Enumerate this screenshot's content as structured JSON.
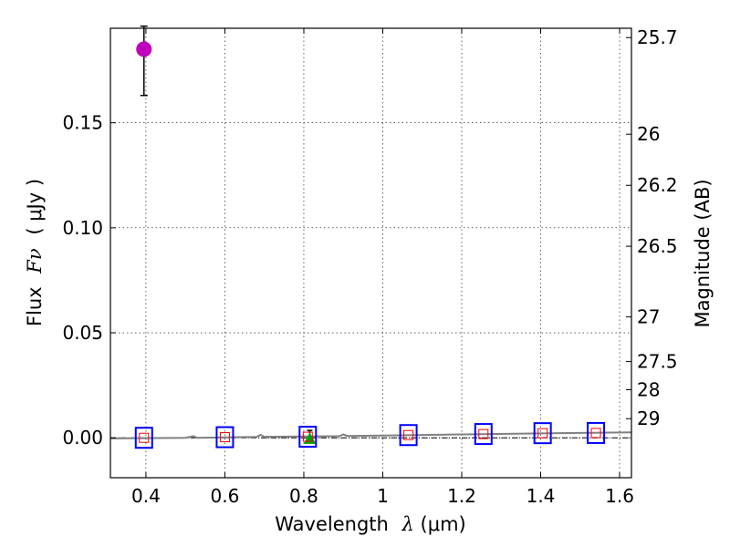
{
  "chart_data": {
    "type": "scatter",
    "title": "",
    "xlabel_text": "Wavelength",
    "xlabel_symbol": "λ",
    "xlabel_unit": "(μm)",
    "ylabel_text": "Flux",
    "ylabel_symbol": "Fν",
    "ylabel_unit": "( μJy )",
    "y2label": "Magnitude (AB)",
    "xlim": [
      0.31,
      1.63
    ],
    "ylim": [
      -0.019,
      0.195
    ],
    "xticks": [
      0.4,
      0.6,
      0.8,
      1.0,
      1.2,
      1.4,
      1.6
    ],
    "xtick_labels": [
      "0.4",
      "0.6",
      "0.8",
      "1",
      "1.2",
      "1.4",
      "1.6"
    ],
    "yticks": [
      0.0,
      0.05,
      0.1,
      0.15
    ],
    "ytick_labels": [
      "0.00",
      "0.05",
      "0.10",
      "0.15"
    ],
    "mag_ticks": [
      25.7,
      26,
      26.2,
      26.5,
      27,
      27.5,
      28,
      29
    ],
    "mag_tick_labels": [
      "25.7",
      "26",
      "26.2",
      "26.5",
      "27",
      "27.5",
      "28",
      "29"
    ],
    "grid": true,
    "colors": {
      "detection": "#bf00bf",
      "model_box": "#0000ff",
      "model_inner": "#ff0000",
      "green": "#00a000",
      "sed": "#808080",
      "zero_line": "#000000"
    },
    "series": [
      {
        "name": "detection",
        "marker": "circle",
        "x": [
          0.395
        ],
        "y": [
          0.185
        ],
        "yerr_low": [
          0.163
        ],
        "yerr_high": [
          0.196
        ]
      },
      {
        "name": "upper limit",
        "marker": "triangle",
        "x": [
          0.815
        ],
        "y": [
          -0.0005
        ],
        "yerr_low": [
          -0.001
        ],
        "yerr_high": [
          0.0035
        ]
      },
      {
        "name": "model photometry",
        "marker": "square",
        "x": [
          0.395,
          0.6,
          0.81,
          1.065,
          1.255,
          1.405,
          1.54
        ],
        "y": [
          0.0,
          0.0003,
          0.0005,
          0.0013,
          0.0018,
          0.0022,
          0.0023
        ]
      },
      {
        "name": "model SED",
        "marker": "line",
        "x": [
          0.31,
          0.5,
          0.52,
          0.53,
          0.68,
          0.69,
          0.7,
          0.89,
          0.9,
          0.91,
          1.0,
          1.2,
          1.4,
          1.63
        ],
        "y": [
          -0.0003,
          0.0,
          0.0008,
          0.0,
          0.0004,
          0.0014,
          0.0005,
          0.0008,
          0.0016,
          0.0009,
          0.0011,
          0.0016,
          0.0021,
          0.0026
        ]
      }
    ]
  }
}
